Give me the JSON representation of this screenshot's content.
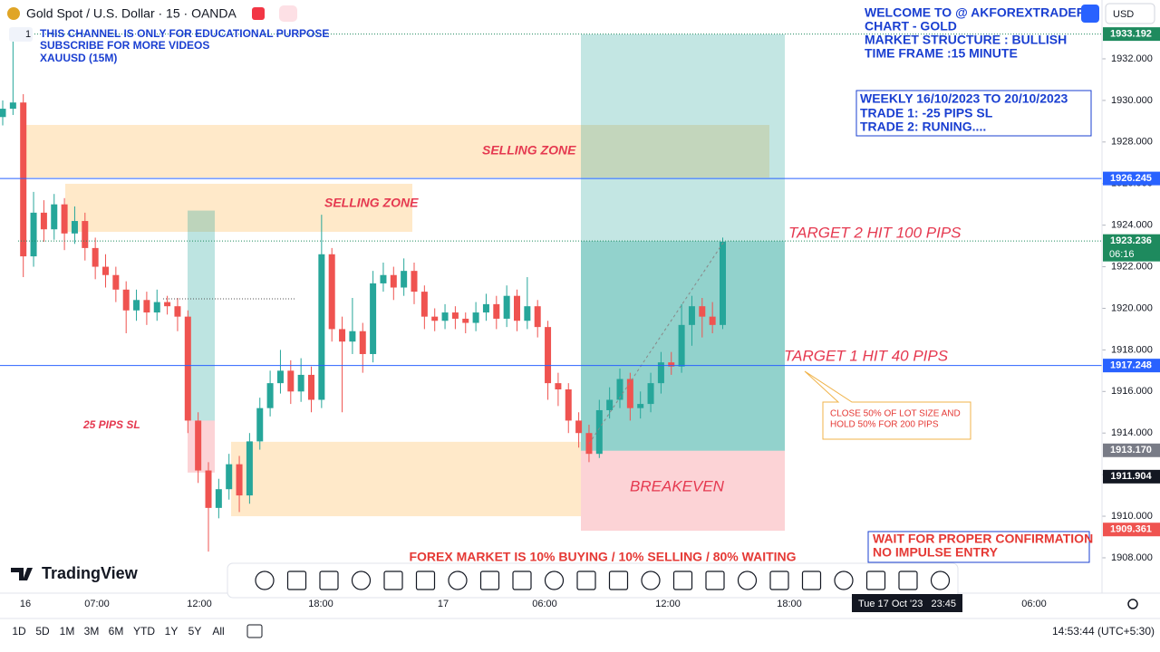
{
  "header": {
    "symbol": "Gold Spot / U.S. Dollar · 15 · OANDA",
    "currency": "USD",
    "pane": "1",
    "notes": [
      "THIS CHANNEL IS ONLY FOR EDUCATIONAL PURPOSE",
      "SUBSCRIBE FOR MORE VIDEOS",
      "XAUUSD (15M)"
    ],
    "welcome": [
      "WELCOME TO @ AKFOREXTRADER",
      "CHART - GOLD",
      "MARKET STRUCTURE : BULLISH",
      "TIME FRAME :15 MINUTE"
    ],
    "weekly": [
      "WEEKLY 16/10/2023 TO 20/10/2023",
      "TRADE 1: -25 PIPS SL",
      "TRADE 2: RUNING...."
    ],
    "warning": [
      "WAIT FOR PROPER CONFIRMATION",
      "NO IMPULSE ENTRY"
    ],
    "logo": "TradingView"
  },
  "chart_data": {
    "type": "candlestick",
    "up_color": "#26a69a",
    "down_color": "#ef5350",
    "ylim": [
      1906.3,
      1934.83
    ],
    "yticks": [
      {
        "value": 1908,
        "label": "1908.000"
      },
      {
        "value": 1910,
        "label": "1910.000"
      },
      {
        "value": 1912,
        "label": "1912.000"
      },
      {
        "value": 1914,
        "label": "1914.000"
      },
      {
        "value": 1916,
        "label": "1916.000"
      },
      {
        "value": 1918,
        "label": "1918.000"
      },
      {
        "value": 1920,
        "label": "1920.000"
      },
      {
        "value": 1922,
        "label": "1922.000"
      },
      {
        "value": 1924,
        "label": "1924.000"
      },
      {
        "value": 1926,
        "label": "1926.000"
      },
      {
        "value": 1928,
        "label": "1928.000"
      },
      {
        "value": 1930,
        "label": "1930.000"
      },
      {
        "value": 1932,
        "label": "1932.000"
      }
    ],
    "x_labels": [
      "16",
      "07:00",
      "12:00",
      "18:00",
      "17",
      "06:00",
      "12:00",
      "18:00",
      "06:00"
    ],
    "crosshair_time": "Tue 17 Oct '23   23:45",
    "open": [
      1929.2,
      1929.6,
      1929.9,
      1922.5,
      1924.6,
      1923.8,
      1925.0,
      1923.6,
      1924.2,
      1922.9,
      1922.0,
      1921.6,
      1920.9,
      1919.9,
      1920.4,
      1919.8,
      1920.3,
      1920.1,
      1919.6,
      1914.6,
      1912.2,
      1910.4,
      1911.3,
      1912.5,
      1911.0,
      1913.6,
      1915.2,
      1916.4,
      1917.0,
      1916.0,
      1916.8,
      1915.6,
      1922.6,
      1919.0,
      1918.4,
      1918.9,
      1917.8,
      1921.2,
      1921.6,
      1921.0,
      1921.8,
      1920.8,
      1919.6,
      1919.4,
      1919.8,
      1919.5,
      1919.3,
      1919.8,
      1920.2,
      1919.5,
      1920.6,
      1919.4,
      1920.1,
      1919.1,
      1916.4,
      1916.1,
      1914.6,
      1914.0,
      1913.0,
      1915.1,
      1915.6,
      1916.6,
      1915.2,
      1915.4,
      1916.4,
      1917.4,
      1917.2,
      1919.2,
      1920.1,
      1919.6,
      1919.2
    ],
    "high": [
      1930.0,
      1932.9,
      1930.3,
      1925.6,
      1925.2,
      1925.5,
      1925.3,
      1924.9,
      1924.6,
      1923.4,
      1922.6,
      1922.0,
      1921.3,
      1920.9,
      1920.8,
      1920.9,
      1920.6,
      1920.5,
      1919.9,
      1915.0,
      1912.6,
      1911.8,
      1913.0,
      1912.9,
      1914.0,
      1915.7,
      1917.0,
      1918.0,
      1917.5,
      1917.6,
      1917.2,
      1924.5,
      1922.9,
      1919.6,
      1920.5,
      1919.3,
      1921.8,
      1922.2,
      1922.0,
      1922.4,
      1922.2,
      1921.1,
      1920.0,
      1920.2,
      1920.1,
      1919.8,
      1920.3,
      1920.7,
      1920.6,
      1921.1,
      1920.9,
      1921.5,
      1920.4,
      1919.4,
      1916.9,
      1916.4,
      1915.0,
      1914.4,
      1915.6,
      1916.2,
      1917.1,
      1916.9,
      1916.0,
      1916.9,
      1917.9,
      1917.9,
      1920.2,
      1920.6,
      1920.5,
      1920.3,
      1923.4
    ],
    "low": [
      1928.8,
      1929.3,
      1921.5,
      1922.0,
      1923.2,
      1923.3,
      1922.8,
      1923.1,
      1922.3,
      1921.4,
      1921.0,
      1920.3,
      1918.8,
      1919.4,
      1919.2,
      1919.4,
      1919.7,
      1918.9,
      1914.0,
      1911.6,
      1908.3,
      1909.9,
      1910.8,
      1910.2,
      1910.6,
      1913.2,
      1914.8,
      1915.9,
      1915.4,
      1915.5,
      1915.0,
      1915.2,
      1918.4,
      1915.0,
      1917.8,
      1916.9,
      1917.4,
      1920.8,
      1920.4,
      1920.6,
      1920.2,
      1919.0,
      1918.9,
      1919.0,
      1919.0,
      1918.8,
      1918.9,
      1919.4,
      1919.0,
      1919.1,
      1918.9,
      1919.0,
      1918.6,
      1915.6,
      1915.3,
      1914.0,
      1913.3,
      1912.6,
      1912.8,
      1914.7,
      1915.2,
      1914.6,
      1914.7,
      1915.0,
      1915.9,
      1916.8,
      1916.9,
      1918.2,
      1918.6,
      1918.8,
      1919.0
    ],
    "close": [
      1929.6,
      1929.9,
      1922.5,
      1924.6,
      1923.8,
      1925.0,
      1923.6,
      1924.2,
      1922.9,
      1922.0,
      1921.6,
      1920.9,
      1919.9,
      1920.4,
      1919.8,
      1920.3,
      1920.1,
      1919.6,
      1914.6,
      1912.2,
      1910.4,
      1911.3,
      1912.5,
      1911.0,
      1913.6,
      1915.2,
      1916.4,
      1917.0,
      1916.0,
      1916.8,
      1915.6,
      1922.6,
      1919.0,
      1918.4,
      1918.9,
      1917.8,
      1921.2,
      1921.6,
      1921.0,
      1921.8,
      1920.8,
      1919.6,
      1919.4,
      1919.8,
      1919.5,
      1919.3,
      1919.8,
      1920.2,
      1919.5,
      1920.6,
      1919.4,
      1920.1,
      1919.1,
      1916.4,
      1916.1,
      1914.6,
      1914.0,
      1913.0,
      1915.1,
      1915.6,
      1916.6,
      1915.2,
      1915.4,
      1916.4,
      1917.4,
      1917.2,
      1919.2,
      1920.1,
      1919.6,
      1919.2,
      1923.2
    ],
    "zones": [
      {
        "low": 1926.29,
        "high": 1928.82,
        "color": "rgba(255,167,38,0.25)"
      },
      {
        "low": 1923.68,
        "high": 1925.99,
        "color": "rgba(255,167,38,0.25)"
      },
      {
        "low": 1910.0,
        "high": 1913.58,
        "color": "rgba(255,167,38,0.25)"
      },
      {
        "low": 1923.24,
        "high": 1933.18,
        "color": "rgba(38,166,154,0.28)"
      },
      {
        "low": 1913.15,
        "high": 1923.24,
        "color": "rgba(38,166,154,0.5)"
      },
      {
        "low": 1909.3,
        "high": 1913.15,
        "color": "rgba(242,54,69,0.22)"
      },
      {
        "low": 1914.6,
        "high": 1924.7,
        "color": "rgba(38,166,154,0.3)"
      },
      {
        "low": 1912.1,
        "high": 1914.6,
        "color": "rgba(242,54,69,0.22)"
      }
    ],
    "price_labels": [
      {
        "value": 1933.192,
        "color": "#1e8a5e",
        "line": "dotted"
      },
      {
        "value": 1926.245,
        "color": "#2962ff",
        "line": "solid"
      },
      {
        "value": 1923.236,
        "color": "#1e8a5e",
        "line": "dotted",
        "countdown": "06:16"
      },
      {
        "value": 1917.248,
        "color": "#2962ff",
        "line": "solid"
      },
      {
        "value": 1913.17,
        "label": "1913.170",
        "color": "#787b86"
      },
      {
        "value": 1911.904,
        "color": "#131722"
      },
      {
        "value": 1909.361,
        "color": "#ef5350"
      }
    ],
    "annotations": [
      "SELLING ZONE",
      "SELLING ZONE",
      "25 PIPS SL",
      "TARGET 2 HIT 100 PIPS",
      "TARGET 1 HIT 40 PIPS",
      "BREAKEVEN",
      "FOREX MARKET IS 10% BUYING / 10% SELLING / 80% WAITING"
    ],
    "callout": [
      "CLOSE 50% OF LOT SIZE AND",
      "HOLD 50% FOR 200 PIPS"
    ]
  },
  "footer": {
    "ranges": [
      "1D",
      "5D",
      "1M",
      "3M",
      "6M",
      "YTD",
      "1Y",
      "5Y",
      "All"
    ],
    "clock": "14:53:44 (UTC+5:30)"
  }
}
